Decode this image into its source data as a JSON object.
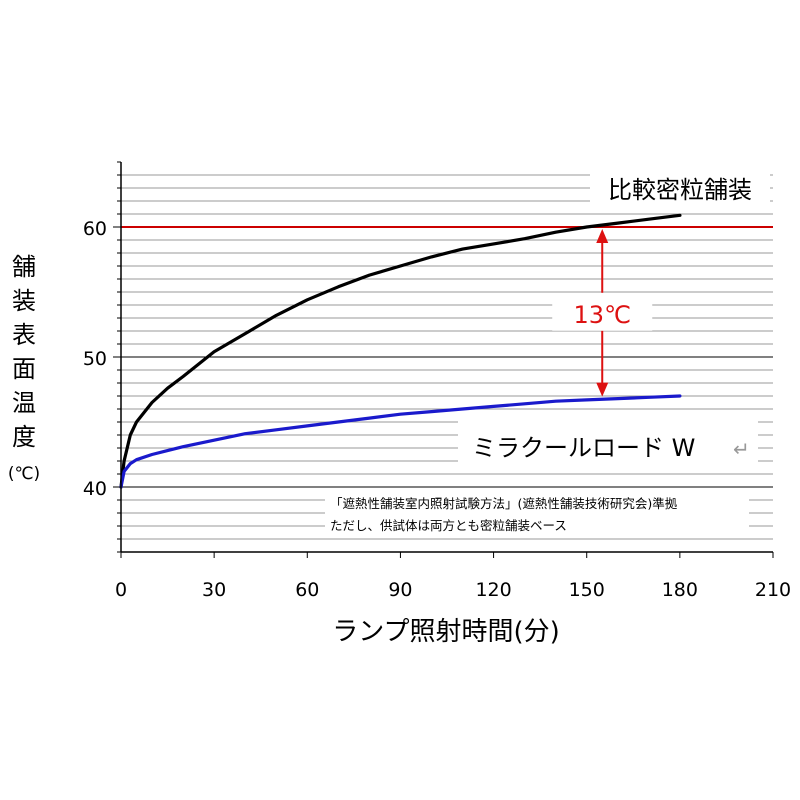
{
  "chart_data": {
    "type": "line",
    "xlabel": "ランプ照射時間(分)",
    "ylabel": "舗装表面温度",
    "yunit": "(℃)",
    "xlim": [
      0,
      210
    ],
    "ylim": [
      35,
      65
    ],
    "xticks": [
      0,
      30,
      60,
      90,
      120,
      150,
      180,
      210
    ],
    "yticks": [
      40,
      50,
      60
    ],
    "grid": true,
    "series": [
      {
        "name": "比較密粒舗装",
        "color": "#000000",
        "x": [
          0,
          1,
          3,
          5,
          10,
          15,
          20,
          30,
          40,
          50,
          60,
          70,
          80,
          90,
          100,
          110,
          120,
          130,
          140,
          150,
          160,
          170,
          180
        ],
        "y": [
          40.0,
          42.0,
          44.0,
          45.0,
          46.5,
          47.6,
          48.5,
          50.4,
          51.8,
          53.2,
          54.4,
          55.4,
          56.3,
          57.0,
          57.7,
          58.3,
          58.7,
          59.1,
          59.6,
          60.0,
          60.3,
          60.6,
          60.9
        ]
      },
      {
        "name": "ミラクールロード W",
        "color": "#1a1acc",
        "x": [
          0,
          1,
          3,
          5,
          10,
          15,
          20,
          30,
          40,
          50,
          60,
          70,
          80,
          90,
          100,
          110,
          120,
          130,
          140,
          150,
          160,
          170,
          180
        ],
        "y": [
          40.0,
          41.2,
          41.8,
          42.1,
          42.5,
          42.8,
          43.1,
          43.6,
          44.1,
          44.4,
          44.7,
          45.0,
          45.3,
          45.6,
          45.8,
          46.0,
          46.2,
          46.4,
          46.6,
          46.7,
          46.8,
          46.9,
          47.0
        ]
      }
    ],
    "reference_line": {
      "y": 60,
      "color": "#cc0000"
    },
    "annotation": {
      "text": "13℃",
      "x": 155,
      "y_from": 60,
      "y_to": 46.8,
      "color": "#dd1111"
    },
    "notes": [
      "「遮熱性舗装室内照射試験方法」(遮熱性舗装技術研究会)準拠",
      "ただし、供試体は両方とも密粒舗装ベース"
    ],
    "legend_marker": "↵"
  }
}
